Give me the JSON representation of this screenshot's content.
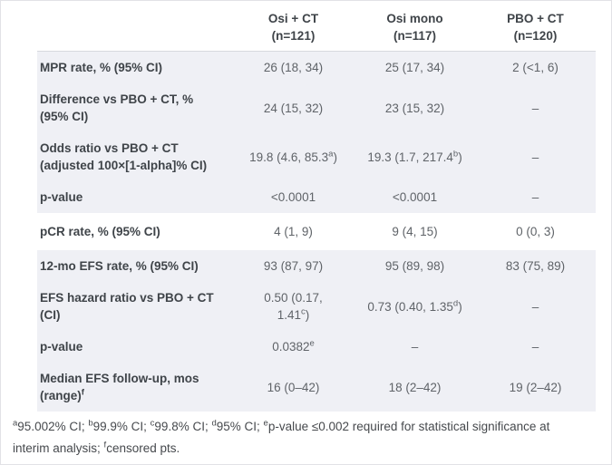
{
  "header": {
    "columns": [
      {
        "line1": "Osi + CT",
        "line2": "(n=121)"
      },
      {
        "line1": "Osi mono",
        "line2": "(n=117)"
      },
      {
        "line1": "PBO + CT",
        "line2": "(n=120)"
      }
    ]
  },
  "table": {
    "rows": [
      {
        "shade": true,
        "label": "MPR rate, % (95% CI)",
        "values": [
          "26 (18, 34)",
          "25 (17, 34)",
          "2 (<1, 6)"
        ]
      },
      {
        "shade": true,
        "label": "Difference vs PBO + CT, %\n(95% CI)",
        "values": [
          "24 (15, 32)",
          "23 (15, 32)",
          "–"
        ]
      },
      {
        "shade": true,
        "label": "Odds ratio vs PBO + CT\n(adjusted 100×[1-alpha]% CI)",
        "values": [
          "19.8 (4.6, 85.3^a)",
          "19.3 (1.7, 217.4^b)",
          "–"
        ]
      },
      {
        "shade": true,
        "label": "p-value",
        "values": [
          "<0.0001",
          "<0.0001",
          "–"
        ]
      },
      {
        "shade": false,
        "label": "pCR rate, % (95% CI)",
        "values": [
          "4 (1, 9)",
          "9 (4, 15)",
          "0 (0, 3)"
        ]
      },
      {
        "shade": true,
        "label": "12-mo EFS rate, % (95% CI)",
        "values": [
          "93 (87, 97)",
          "95 (89, 98)",
          "83 (75, 89)"
        ]
      },
      {
        "shade": true,
        "label": "EFS hazard ratio vs PBO + CT\n(CI)",
        "values": [
          "0.50 (0.17,\n1.41^c)",
          "0.73 (0.40, 1.35^d)",
          "–"
        ]
      },
      {
        "shade": true,
        "label": "p-value",
        "values": [
          "0.0382^e",
          "–",
          "–"
        ]
      },
      {
        "shade": true,
        "label": "Median EFS follow-up, mos\n(range)^f",
        "values": [
          "16 (0–42)",
          "18 (2–42)",
          "19 (2–42)"
        ]
      }
    ]
  },
  "footnote": "^a95.002% CI; ^b99.9% CI; ^c99.8% CI; ^d95% CI; ^ep-value ≤0.002 required for statistical significance at\ninterim analysis; ^fcensored pts.",
  "colors": {
    "shade_band": "#eff0f5",
    "table_top_border": "#d7d9de",
    "label_text": "#3f4449",
    "value_text": "#5f6368"
  }
}
